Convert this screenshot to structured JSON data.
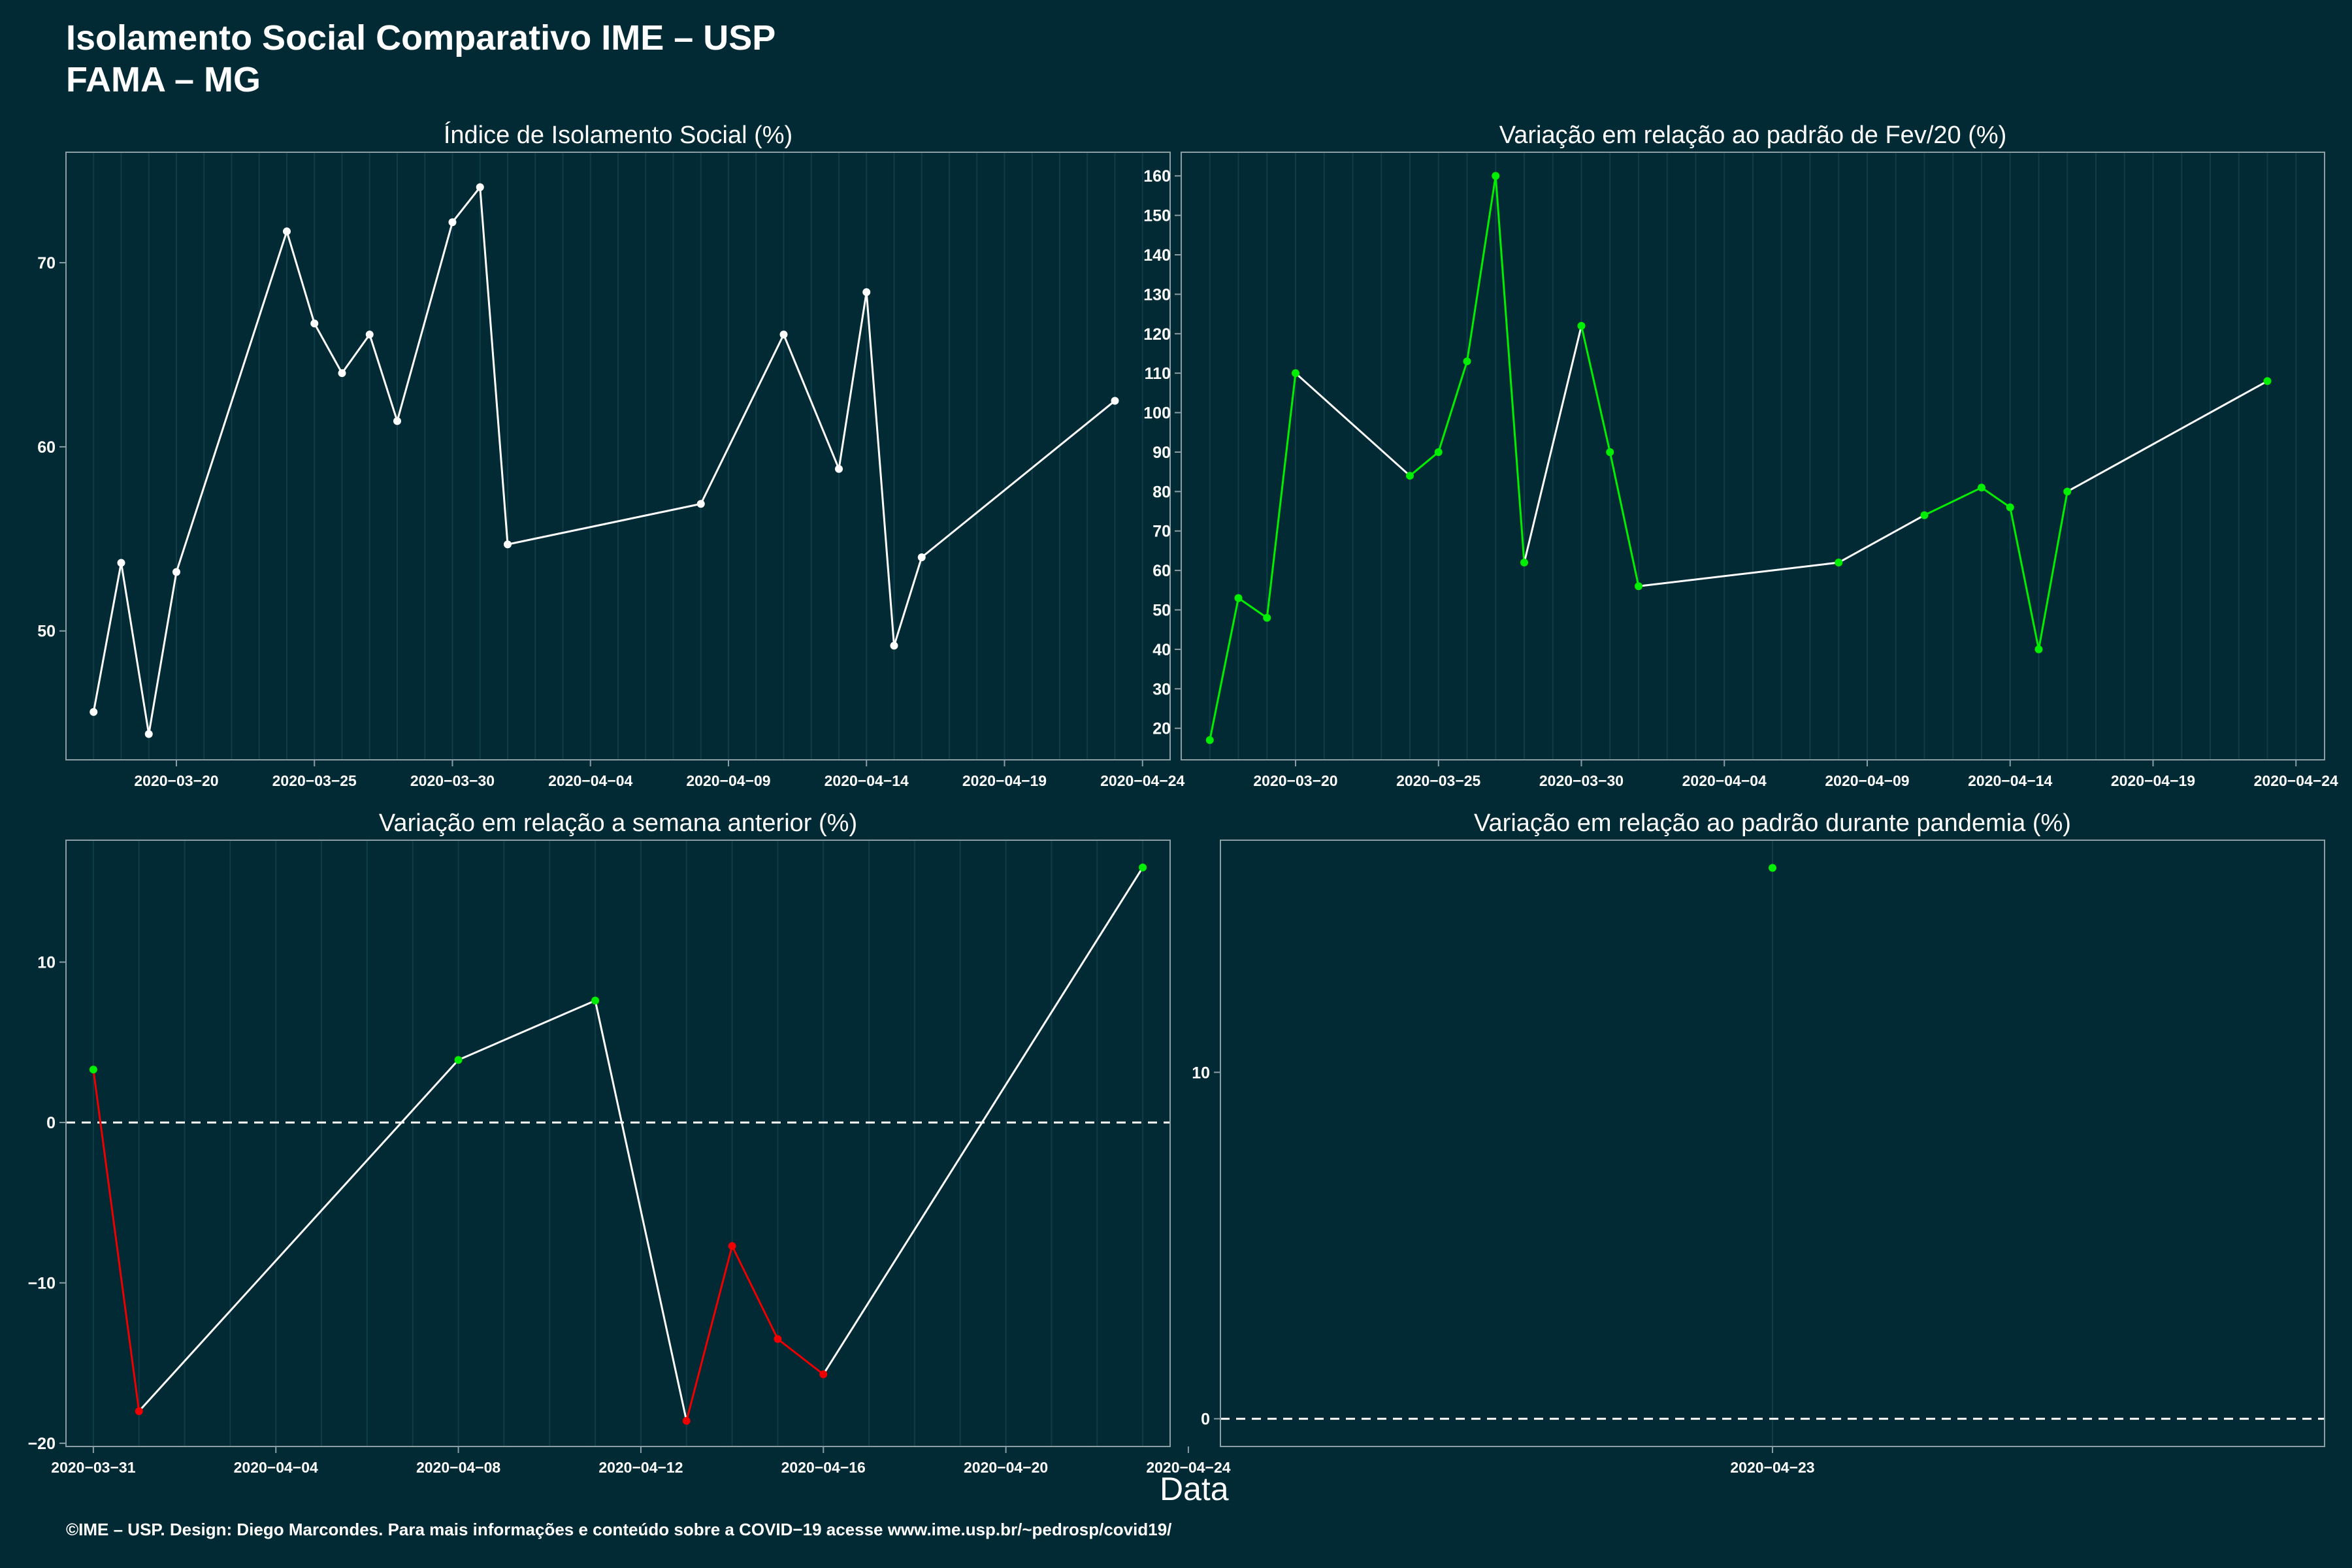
{
  "header": {
    "title_line1": "Isolamento Social Comparativo IME – USP",
    "title_line2": "FAMA – MG"
  },
  "x_axis_title": "Data",
  "footer": "©IME – USP. Design: Diego Marcondes. Para mais informações e conteúdo sobre a COVID−19 acesse www.ime.usp.br/~pedrosp/covid19/",
  "colors": {
    "background": "#012a35",
    "line_white": "#ffffff",
    "increase_green": "#00ee00",
    "decrease_red": "#ee0000",
    "grid": "#0f3c47",
    "panel_border": "#8a9ea4"
  },
  "chart_data": [
    {
      "id": "p1",
      "type": "line",
      "title": "Índice de Isolamento Social (%)",
      "x_type": "date",
      "xlim": [
        "2020-03-16",
        "2020-04-25"
      ],
      "ylim": [
        43,
        76
      ],
      "xticks": [
        "2020-03-20",
        "2020-03-25",
        "2020-03-30",
        "2020-04-04",
        "2020-04-09",
        "2020-04-14",
        "2020-04-19",
        "2020-04-24"
      ],
      "yticks": [
        50,
        60,
        70
      ],
      "grid": true,
      "point_color": "#ffffff",
      "points": [
        {
          "x": "2020-03-17",
          "y": 45.6
        },
        {
          "x": "2020-03-18",
          "y": 53.7
        },
        {
          "x": "2020-03-19",
          "y": 44.4
        },
        {
          "x": "2020-03-20",
          "y": 53.2
        },
        {
          "x": "2020-03-24",
          "y": 71.7
        },
        {
          "x": "2020-03-25",
          "y": 66.7
        },
        {
          "x": "2020-03-26",
          "y": 64.0
        },
        {
          "x": "2020-03-27",
          "y": 66.1
        },
        {
          "x": "2020-03-28",
          "y": 61.4
        },
        {
          "x": "2020-03-30",
          "y": 72.2
        },
        {
          "x": "2020-03-31",
          "y": 74.1
        },
        {
          "x": "2020-04-01",
          "y": 54.7
        },
        {
          "x": "2020-04-08",
          "y": 56.9
        },
        {
          "x": "2020-04-11",
          "y": 66.1
        },
        {
          "x": "2020-04-13",
          "y": 58.8
        },
        {
          "x": "2020-04-14",
          "y": 68.4
        },
        {
          "x": "2020-04-15",
          "y": 49.2
        },
        {
          "x": "2020-04-16",
          "y": 54.0
        },
        {
          "x": "2020-04-23",
          "y": 62.5
        }
      ]
    },
    {
      "id": "p2",
      "type": "line",
      "title": "Variação em relação ao padrão de Fev/20 (%)",
      "x_type": "date",
      "xlim": [
        "2020-03-16",
        "2020-04-25"
      ],
      "ylim": [
        12,
        166
      ],
      "xticks": [
        "2020-03-20",
        "2020-03-25",
        "2020-03-30",
        "2020-04-04",
        "2020-04-09",
        "2020-04-14",
        "2020-04-19",
        "2020-04-24"
      ],
      "yticks": [
        20,
        30,
        40,
        50,
        60,
        70,
        80,
        90,
        100,
        110,
        120,
        130,
        140,
        150,
        160
      ],
      "grid": true,
      "point_color": "#00ee00",
      "segment_colors": [
        "#00ee00",
        "#00ee00",
        "#00ee00",
        "#ffffff",
        "#00ee00",
        "#00ee00",
        "#00ee00",
        "#00ee00",
        "#ffffff",
        "#00ee00",
        "#00ee00",
        "#ffffff",
        "#ffffff",
        "#00ee00",
        "#00ee00",
        "#00ee00",
        "#00ee00",
        "#ffffff"
      ],
      "points": [
        {
          "x": "2020-03-17",
          "y": 17
        },
        {
          "x": "2020-03-18",
          "y": 53
        },
        {
          "x": "2020-03-19",
          "y": 48
        },
        {
          "x": "2020-03-20",
          "y": 110
        },
        {
          "x": "2020-03-24",
          "y": 84
        },
        {
          "x": "2020-03-25",
          "y": 90
        },
        {
          "x": "2020-03-26",
          "y": 113
        },
        {
          "x": "2020-03-27",
          "y": 160
        },
        {
          "x": "2020-03-28",
          "y": 62
        },
        {
          "x": "2020-03-30",
          "y": 122
        },
        {
          "x": "2020-03-31",
          "y": 90
        },
        {
          "x": "2020-04-01",
          "y": 56
        },
        {
          "x": "2020-04-08",
          "y": 62
        },
        {
          "x": "2020-04-11",
          "y": 74
        },
        {
          "x": "2020-04-13",
          "y": 81
        },
        {
          "x": "2020-04-14",
          "y": 76
        },
        {
          "x": "2020-04-15",
          "y": 40
        },
        {
          "x": "2020-04-16",
          "y": 80
        },
        {
          "x": "2020-04-23",
          "y": 108
        }
      ]
    },
    {
      "id": "p3",
      "type": "line",
      "title": "Variação em relação a semana anterior (%)",
      "x_type": "date",
      "xlim": [
        "2020-03-30.4",
        "2020-04-23.6"
      ],
      "ylim": [
        -20.2,
        17.6
      ],
      "xticks": [
        "2020-03-31",
        "2020-04-04",
        "2020-04-08",
        "2020-04-12",
        "2020-04-16",
        "2020-04-20",
        "2020-04-24"
      ],
      "yticks": [
        -20,
        -10,
        0,
        10
      ],
      "ytick_labels": [
        "−20",
        "−10",
        "0",
        "10"
      ],
      "grid": true,
      "reference_line": 0,
      "segment_colors": [
        "#ee0000",
        "#ffffff",
        "#ffffff",
        "#ffffff",
        "#ee0000",
        "#ee0000",
        "#ee0000",
        "#ffffff"
      ],
      "points": [
        {
          "x": "2020-03-31",
          "y": 3.3,
          "color": "#00ee00"
        },
        {
          "x": "2020-04-01",
          "y": -18.0,
          "color": "#ee0000"
        },
        {
          "x": "2020-04-08",
          "y": 3.9,
          "color": "#00ee00"
        },
        {
          "x": "2020-04-11",
          "y": 7.6,
          "color": "#00ee00"
        },
        {
          "x": "2020-04-13",
          "y": -18.6,
          "color": "#ee0000"
        },
        {
          "x": "2020-04-14",
          "y": -7.7,
          "color": "#ee0000"
        },
        {
          "x": "2020-04-15",
          "y": -13.5,
          "color": "#ee0000"
        },
        {
          "x": "2020-04-16",
          "y": -15.7,
          "color": "#ee0000"
        },
        {
          "x": "2020-04-23",
          "y": 15.9,
          "color": "#00ee00"
        }
      ]
    },
    {
      "id": "p4",
      "type": "scatter",
      "title": "Variação em relação ao padrão durante pandemia (%)",
      "x_type": "date",
      "xlim": [
        "2020-04-22.8",
        "2020-04-23.2"
      ],
      "ylim": [
        -0.8,
        16.7
      ],
      "xticks": [
        "2020-04-23"
      ],
      "yticks": [
        0,
        10
      ],
      "grid": true,
      "reference_line": 0,
      "points": [
        {
          "x": "2020-04-23",
          "y": 15.9,
          "color": "#00ee00"
        }
      ]
    }
  ]
}
